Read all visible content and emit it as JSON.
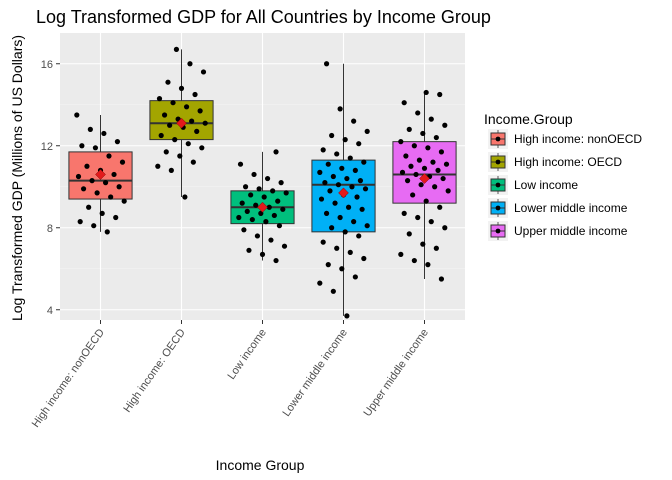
{
  "chart_data": {
    "type": "boxplot",
    "title": "Log Transformed GDP for All Countries by Income Group",
    "xlabel": "Income Group",
    "ylabel": "Log Transformed GDP (Millions of US Dollars)",
    "ylim": [
      3.5,
      17.5
    ],
    "yticks": [
      4,
      8,
      12,
      16
    ],
    "grid": true,
    "legend_title": "Income.Group",
    "legend_position": "right",
    "categories": [
      "High income: nonOECD",
      "High income: OECD",
      "Low income",
      "Lower middle income",
      "Upper middle income"
    ],
    "series": [
      {
        "name": "High income: nonOECD",
        "color": "#F8766D",
        "box": {
          "min": 7.8,
          "q1": 9.4,
          "median": 10.3,
          "q3": 11.7,
          "max": 13.5
        },
        "mean": 10.6,
        "points": [
          13.5,
          12.8,
          12.6,
          12.2,
          12.0,
          11.9,
          11.5,
          11.2,
          11.0,
          10.8,
          10.6,
          10.5,
          10.3,
          10.2,
          10.0,
          9.9,
          9.7,
          9.5,
          9.3,
          9.0,
          8.7,
          8.5,
          8.3,
          8.1,
          7.8
        ]
      },
      {
        "name": "High income: OECD",
        "color": "#A3A500",
        "box": {
          "min": 9.5,
          "q1": 12.3,
          "median": 13.1,
          "q3": 14.2,
          "max": 16.7
        },
        "mean": 13.1,
        "points": [
          16.7,
          16.0,
          15.6,
          15.1,
          14.8,
          14.5,
          14.3,
          14.1,
          13.9,
          13.7,
          13.5,
          13.3,
          13.2,
          13.1,
          13.0,
          12.9,
          12.7,
          12.5,
          12.3,
          12.1,
          11.9,
          11.7,
          11.5,
          11.2,
          11.0,
          10.8,
          9.5
        ]
      },
      {
        "name": "Low income",
        "color": "#00BF7D",
        "box": {
          "min": 6.4,
          "q1": 8.2,
          "median": 9.0,
          "q3": 9.8,
          "max": 11.7
        },
        "mean": 9.0,
        "points": [
          11.7,
          11.1,
          10.6,
          10.4,
          10.2,
          10.0,
          9.9,
          9.8,
          9.7,
          9.6,
          9.5,
          9.3,
          9.2,
          9.1,
          9.0,
          8.9,
          8.8,
          8.7,
          8.6,
          8.5,
          8.4,
          8.3,
          8.1,
          7.9,
          7.6,
          7.4,
          7.1,
          6.9,
          6.7,
          6.4
        ]
      },
      {
        "name": "Lower middle income",
        "color": "#00B0F6",
        "box": {
          "min": 3.7,
          "q1": 7.8,
          "median": 10.1,
          "q3": 11.3,
          "max": 16.0
        },
        "mean": 9.7,
        "points": [
          16.0,
          13.8,
          13.2,
          12.7,
          12.5,
          12.3,
          12.1,
          11.8,
          11.6,
          11.4,
          11.2,
          11.1,
          10.9,
          10.8,
          10.7,
          10.5,
          10.4,
          10.3,
          10.2,
          10.1,
          10.0,
          9.9,
          9.8,
          9.6,
          9.5,
          9.4,
          9.2,
          9.0,
          8.9,
          8.7,
          8.5,
          8.3,
          8.1,
          8.0,
          7.8,
          7.6,
          7.3,
          7.0,
          6.8,
          6.5,
          6.2,
          6.0,
          5.6,
          5.3,
          4.9,
          3.7
        ]
      },
      {
        "name": "Upper middle income",
        "color": "#E76BF3",
        "box": {
          "min": 5.5,
          "q1": 9.2,
          "median": 10.6,
          "q3": 12.2,
          "max": 14.6
        },
        "mean": 10.4,
        "points": [
          14.6,
          14.5,
          14.1,
          13.6,
          13.3,
          13.0,
          12.8,
          12.6,
          12.4,
          12.2,
          12.0,
          11.9,
          11.7,
          11.5,
          11.3,
          11.2,
          11.1,
          11.0,
          10.9,
          10.8,
          10.7,
          10.6,
          10.5,
          10.4,
          10.3,
          10.1,
          10.0,
          9.8,
          9.6,
          9.3,
          9.0,
          8.7,
          8.5,
          8.3,
          8.0,
          7.7,
          7.2,
          7.0,
          6.7,
          6.4,
          6.2,
          5.5
        ]
      }
    ]
  }
}
